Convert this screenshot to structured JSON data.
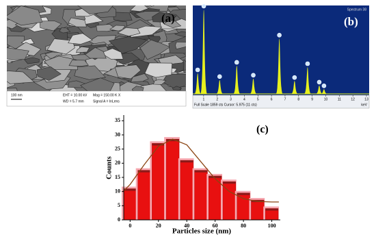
{
  "panel_a": {
    "label": "(a)",
    "scale_bar": "100 nm",
    "eht": "EHT = 10.00 kV",
    "wd": "WD = 5.7 mm",
    "mag": "Mag = 150.00 K X",
    "signal": "Signal A = InLens"
  },
  "panel_b": {
    "label": "(b)",
    "spectrum_name": "Spectrum 38",
    "footer": "Full Scale 1859 cts Cursor: 5.975 (11 cts)",
    "unit": "keV"
  },
  "panel_c": {
    "label": "(c)"
  },
  "chart_data": [
    {
      "type": "spectrum",
      "color": "#e6f01e",
      "background": "#0b2a7a",
      "x": [
        0.56,
        1.01,
        2.18,
        3.44,
        4.66,
        6.58,
        7.7,
        8.66,
        9.52,
        9.87
      ],
      "values": [
        446,
        1830,
        300,
        610,
        330,
        1200,
        280,
        580,
        180,
        100
      ],
      "xlim": [
        0.2,
        13.2
      ],
      "ylim": [
        0,
        1859
      ],
      "xticks": [
        1,
        2,
        3,
        4,
        5,
        6,
        7,
        8,
        9,
        10,
        11,
        12,
        13
      ]
    },
    {
      "type": "histogram",
      "x_label": "Particles size (nm)",
      "y_label": "Counts",
      "bins": [
        -5,
        5,
        15,
        25,
        35,
        45,
        55,
        65,
        75,
        85,
        95,
        105
      ],
      "values": [
        11,
        17.5,
        27,
        28.5,
        21,
        17.5,
        15.5,
        13.5,
        9.5,
        7,
        4
      ],
      "color": "#e81010",
      "fit": {
        "color": "#8b4513",
        "x": [
          -5,
          0,
          10,
          20,
          30,
          40,
          50,
          60,
          70,
          80,
          90,
          100,
          105
        ],
        "values": [
          10,
          12.5,
          19.5,
          26,
          28.5,
          26.5,
          20.5,
          14.5,
          10,
          7.5,
          6.5,
          6.3,
          6.3
        ]
      },
      "xlim": [
        -4.5,
        106
      ],
      "ylim": [
        0,
        37
      ],
      "xticks": [
        0,
        20,
        40,
        60,
        80,
        100
      ],
      "yticks": [
        0,
        5,
        10,
        15,
        20,
        25,
        30,
        35
      ]
    }
  ]
}
